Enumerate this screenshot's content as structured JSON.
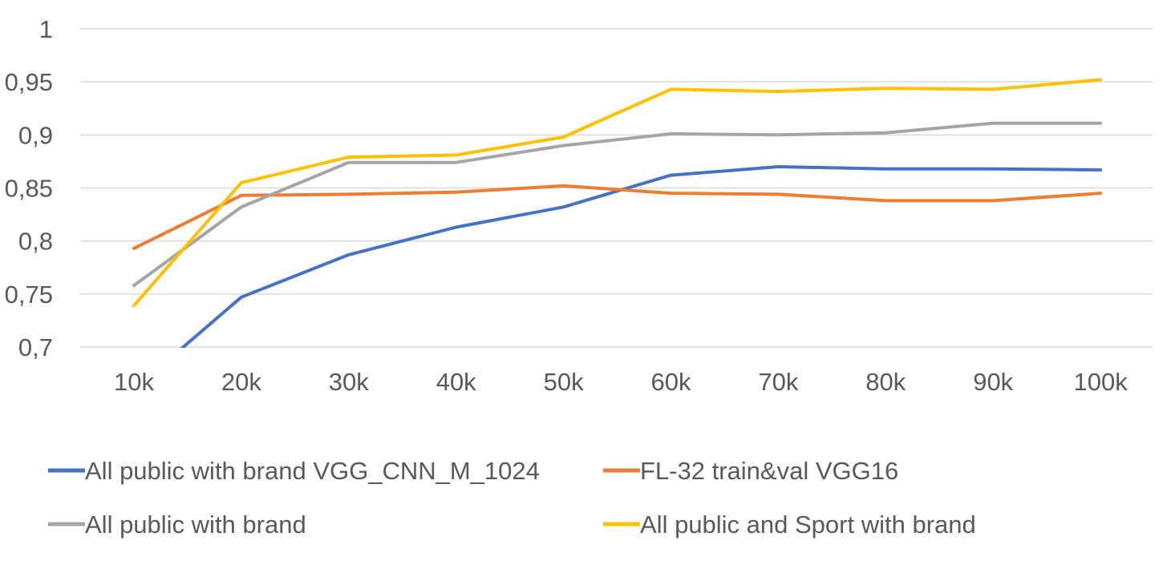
{
  "chart_data": {
    "type": "line",
    "title": "",
    "xlabel": "",
    "ylabel": "",
    "categories": [
      "10k",
      "20k",
      "30k",
      "40k",
      "50k",
      "60k",
      "70k",
      "80k",
      "90k",
      "100k"
    ],
    "ylim": [
      0.7,
      1
    ],
    "yticks": [
      0.7,
      0.75,
      0.8,
      0.85,
      0.9,
      0.95,
      1
    ],
    "ytick_labels": [
      "0,7",
      "0,75",
      "0,8",
      "0,85",
      "0,9",
      "0,95",
      "1"
    ],
    "grid": true,
    "legend_position": "bottom",
    "series": [
      {
        "name": "All public with brand VGG_CNN_M_1024",
        "color": "#4472c4",
        "values": [
          0.66,
          0.747,
          0.787,
          0.813,
          0.832,
          0.862,
          0.87,
          0.868,
          0.868,
          0.867
        ]
      },
      {
        "name": "FL-32 train&val VGG16",
        "color": "#ed7d31",
        "values": [
          0.793,
          0.843,
          0.844,
          0.846,
          0.852,
          0.845,
          0.844,
          0.838,
          0.838,
          0.845
        ]
      },
      {
        "name": "All public with brand",
        "color": "#a5a5a5",
        "values": [
          0.758,
          0.832,
          0.874,
          0.874,
          0.89,
          0.901,
          0.9,
          0.902,
          0.911,
          0.911
        ]
      },
      {
        "name": "All public and Sport with brand",
        "color": "#ffc000",
        "values": [
          0.739,
          0.855,
          0.879,
          0.881,
          0.898,
          0.943,
          0.941,
          0.944,
          0.943,
          0.952
        ]
      }
    ]
  }
}
